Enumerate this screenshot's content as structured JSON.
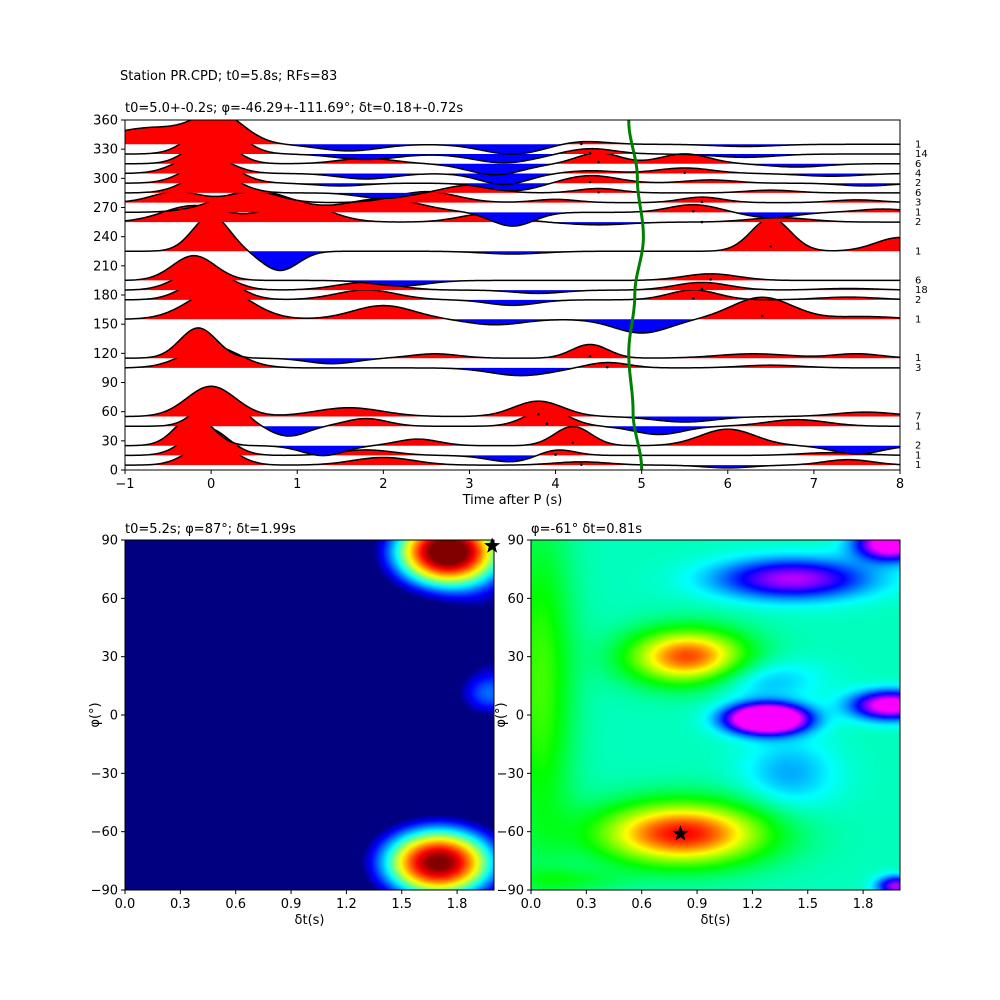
{
  "suptitle": "Station PR.CPD; t0=5.8s; RFs=83",
  "chart_data": [
    {
      "type": "line",
      "panel": "receiver-function-traces",
      "title": "t0=5.0+-0.2s; φ=-46.29+-111.69°; δt=0.18+-0.72s",
      "title_phi": "φ",
      "title_dt": "δ",
      "xlabel": "Time after P (s)",
      "ylabel": "",
      "xlim": [
        -1,
        8
      ],
      "ylim": [
        0,
        360
      ],
      "xticks": [
        -1,
        0,
        1,
        2,
        3,
        4,
        5,
        6,
        7,
        8
      ],
      "yticks": [
        0,
        30,
        60,
        90,
        120,
        150,
        180,
        210,
        240,
        270,
        300,
        330,
        360
      ],
      "fill_positive": "#ff0000",
      "fill_negative": "#0000ff",
      "trace_color": "#000000",
      "curve_color": "#008000",
      "t0_curve": {
        "mean_t": 4.92,
        "amplitude_t": 0.1,
        "points_baz": [
          0,
          60,
          120,
          180,
          240,
          300,
          360
        ],
        "points_t": [
          5.0,
          4.9,
          4.85,
          4.92,
          5.02,
          4.95,
          4.85
        ]
      },
      "traces": [
        {
          "baz": 5,
          "count": "1",
          "peak_t": 4.3,
          "gaussians": [
            [
              0.0,
              0.42,
              0.36
            ],
            [
              2.0,
              0.14,
              0.5
            ],
            [
              4.3,
              0.06,
              0.45
            ],
            [
              6.0,
              -0.05,
              0.4
            ],
            [
              7.4,
              0.1,
              0.4
            ]
          ]
        },
        {
          "baz": 15,
          "count": "1",
          "peak_t": 4.0,
          "gaussians": [
            [
              -0.05,
              0.5,
              0.35
            ],
            [
              1.8,
              0.1,
              0.45
            ],
            [
              3.5,
              -0.12,
              0.4
            ],
            [
              4.0,
              0.12,
              0.3
            ],
            [
              7.2,
              0.05,
              0.5
            ]
          ]
        },
        {
          "baz": 25,
          "count": "2",
          "peak_t": 4.2,
          "gaussians": [
            [
              -0.2,
              0.55,
              0.3
            ],
            [
              1.3,
              -0.18,
              0.35
            ],
            [
              2.4,
              0.12,
              0.35
            ],
            [
              4.2,
              0.35,
              0.3
            ],
            [
              6.0,
              0.3,
              0.45
            ],
            [
              7.5,
              -0.15,
              0.4
            ]
          ]
        },
        {
          "baz": 45,
          "count": "1",
          "peak_t": 3.9,
          "gaussians": [
            [
              0.1,
              0.6,
              0.33
            ],
            [
              0.9,
              -0.18,
              0.3
            ],
            [
              1.8,
              0.14,
              0.35
            ],
            [
              3.9,
              0.3,
              0.35
            ],
            [
              5.2,
              -0.15,
              0.4
            ],
            [
              6.8,
              0.12,
              0.5
            ]
          ]
        },
        {
          "baz": 55,
          "count": "7",
          "peak_t": 3.8,
          "gaussians": [
            [
              0.0,
              0.55,
              0.4
            ],
            [
              1.6,
              0.16,
              0.55
            ],
            [
              3.8,
              0.28,
              0.4
            ],
            [
              5.5,
              -0.1,
              0.5
            ],
            [
              7.6,
              0.08,
              0.5
            ]
          ]
        },
        {
          "baz": 105,
          "count": "3",
          "peak_t": 4.6,
          "gaussians": [
            [
              0.0,
              0.4,
              0.45
            ],
            [
              3.6,
              -0.14,
              0.5
            ],
            [
              4.6,
              0.1,
              0.35
            ],
            [
              6.5,
              0.05,
              0.5
            ]
          ]
        },
        {
          "baz": 115,
          "count": "1",
          "peak_t": 4.4,
          "gaussians": [
            [
              -0.15,
              0.55,
              0.3
            ],
            [
              1.4,
              -0.1,
              0.4
            ],
            [
              2.6,
              0.08,
              0.4
            ],
            [
              4.4,
              0.25,
              0.3
            ],
            [
              6.3,
              0.08,
              0.6
            ],
            [
              7.5,
              0.08,
              0.4
            ]
          ]
        },
        {
          "baz": 155,
          "count": "1",
          "peak_t": 6.4,
          "gaussians": [
            [
              0.1,
              0.55,
              0.5
            ],
            [
              2.0,
              0.25,
              0.5
            ],
            [
              3.3,
              -0.1,
              0.45
            ],
            [
              5.0,
              -0.25,
              0.45
            ],
            [
              6.4,
              0.4,
              0.5
            ],
            [
              7.6,
              0.05,
              0.5
            ]
          ]
        },
        {
          "baz": 175,
          "count": "2",
          "peak_t": 5.6,
          "gaussians": [
            [
              0.0,
              0.45,
              0.4
            ],
            [
              1.8,
              0.18,
              0.5
            ],
            [
              3.5,
              -0.1,
              0.4
            ],
            [
              5.6,
              0.18,
              0.4
            ],
            [
              7.4,
              0.05,
              0.5
            ]
          ]
        },
        {
          "baz": 185,
          "count": "18",
          "peak_t": 5.7,
          "gaussians": [
            [
              -0.1,
              0.4,
              0.4
            ],
            [
              1.8,
              0.14,
              0.5
            ],
            [
              3.8,
              -0.06,
              0.4
            ],
            [
              5.7,
              0.14,
              0.45
            ],
            [
              7.4,
              0.03,
              0.5
            ]
          ]
        },
        {
          "baz": 195,
          "count": "6",
          "peak_t": 5.8,
          "gaussians": [
            [
              -0.2,
              0.45,
              0.35
            ],
            [
              2.2,
              -0.1,
              0.45
            ],
            [
              5.8,
              0.12,
              0.45
            ]
          ]
        },
        {
          "baz": 225,
          "count": "1",
          "peak_t": 6.5,
          "gaussians": [
            [
              0.0,
              0.65,
              0.3
            ],
            [
              0.8,
              -0.35,
              0.3
            ],
            [
              3.5,
              -0.05,
              0.5
            ],
            [
              6.5,
              0.6,
              0.32
            ],
            [
              8.0,
              0.25,
              0.4
            ]
          ]
        },
        {
          "baz": 255,
          "count": "2",
          "peak_t": 5.7,
          "gaussians": [
            [
              -0.2,
              0.3,
              0.5
            ],
            [
              1.0,
              0.35,
              0.5
            ],
            [
              3.2,
              0.15,
              0.45
            ],
            [
              4.5,
              -0.05,
              0.5
            ],
            [
              6.6,
              0.08,
              0.5
            ]
          ]
        },
        {
          "baz": 265,
          "count": "1",
          "peak_t": 5.6,
          "gaussians": [
            [
              0.5,
              0.4,
              0.6
            ],
            [
              2.0,
              0.25,
              0.6
            ],
            [
              3.5,
              -0.25,
              0.35
            ],
            [
              5.6,
              0.14,
              0.4
            ],
            [
              6.5,
              -0.1,
              0.4
            ],
            [
              7.8,
              0.06,
              0.4
            ]
          ]
        },
        {
          "baz": 275,
          "count": "3",
          "peak_t": 5.7,
          "gaussians": [
            [
              -0.4,
              0.2,
              0.4
            ],
            [
              0.5,
              0.2,
              0.4
            ],
            [
              2.5,
              0.2,
              0.5
            ],
            [
              4.0,
              0.06,
              0.35
            ],
            [
              5.7,
              0.1,
              0.35
            ],
            [
              7.5,
              0.05,
              0.4
            ]
          ]
        },
        {
          "baz": 285,
          "count": "6",
          "peak_t": 4.5,
          "gaussians": [
            [
              0.0,
              0.38,
              0.4
            ],
            [
              2.0,
              -0.1,
              0.4
            ],
            [
              3.0,
              0.14,
              0.4
            ],
            [
              4.5,
              0.08,
              0.35
            ],
            [
              6.5,
              0.05,
              0.4
            ]
          ]
        },
        {
          "baz": 295,
          "count": "2",
          "peak_t": 4.4,
          "gaussians": [
            [
              0.0,
              0.42,
              0.4
            ],
            [
              1.5,
              -0.05,
              0.4
            ],
            [
              3.5,
              -0.14,
              0.45
            ],
            [
              4.4,
              0.14,
              0.45
            ],
            [
              5.8,
              0.06,
              0.4
            ],
            [
              7.6,
              -0.05,
              0.4
            ]
          ]
        },
        {
          "baz": 305,
          "count": "4",
          "peak_t": 5.5,
          "gaussians": [
            [
              -0.1,
              0.36,
              0.4
            ],
            [
              1.8,
              -0.1,
              0.45
            ],
            [
              3.4,
              -0.2,
              0.4
            ],
            [
              4.4,
              0.05,
              0.4
            ],
            [
              5.5,
              0.1,
              0.45
            ],
            [
              7.2,
              -0.05,
              0.5
            ]
          ]
        },
        {
          "baz": 315,
          "count": "6",
          "peak_t": 4.5,
          "gaussians": [
            [
              0.0,
              0.48,
              0.35
            ],
            [
              1.8,
              0.1,
              0.45
            ],
            [
              3.3,
              -0.2,
              0.45
            ],
            [
              4.5,
              0.2,
              0.35
            ],
            [
              5.5,
              0.18,
              0.4
            ],
            [
              6.8,
              -0.06,
              0.45
            ]
          ]
        },
        {
          "baz": 325,
          "count": "14",
          "peak_t": 4.4,
          "gaussians": [
            [
              0.05,
              0.6,
              0.38
            ],
            [
              1.8,
              -0.1,
              0.5
            ],
            [
              3.4,
              -0.16,
              0.5
            ],
            [
              4.4,
              0.1,
              0.4
            ],
            [
              6.2,
              -0.06,
              0.5
            ]
          ]
        },
        {
          "baz": 335,
          "count": "1",
          "peak_t": 4.3,
          "gaussians": [
            [
              -0.7,
              0.3,
              0.7
            ],
            [
              0.1,
              0.5,
              0.4
            ],
            [
              1.6,
              -0.12,
              0.5
            ],
            [
              3.5,
              -0.18,
              0.5
            ],
            [
              4.3,
              0.06,
              0.4
            ],
            [
              6.2,
              -0.04,
              0.5
            ]
          ]
        }
      ]
    },
    {
      "type": "heatmap",
      "panel": "left-grid",
      "title": "t0=5.2s; φ=87°; δt=1.99s",
      "xlabel": "δt(s)",
      "ylabel": "φ(°)",
      "xlim": [
        0.0,
        2.0
      ],
      "ylim": [
        -90,
        90
      ],
      "xticks": [
        "0.0",
        "0.3",
        "0.6",
        "0.9",
        "1.2",
        "1.5",
        "1.8"
      ],
      "yticks": [
        "−90",
        "−60",
        "−30",
        "0",
        "30",
        "60",
        "90"
      ],
      "colormap": "jet",
      "best": {
        "dt": 1.99,
        "phi": 87
      },
      "field": {
        "base": -0.28,
        "components": [
          [
            0.42,
            -10,
            0.06,
            90,
            -2.2
          ],
          [
            1.7,
            -76,
            0.34,
            20,
            1.3
          ],
          [
            1.75,
            84,
            0.32,
            20,
            1.4
          ],
          [
            1.98,
            10,
            0.22,
            14,
            0.45
          ],
          [
            0.75,
            45,
            0.45,
            22,
            0.2
          ],
          [
            0.7,
            -45,
            0.5,
            15,
            0.15
          ],
          [
            2.0,
            40,
            0.25,
            25,
            0.25
          ]
        ]
      }
    },
    {
      "type": "heatmap",
      "panel": "right-grid",
      "title": "φ=-61° δt=0.81s",
      "xlabel": "δt(s)",
      "ylabel": "φ(°)",
      "xlim": [
        0.0,
        2.0
      ],
      "ylim": [
        -90,
        90
      ],
      "xticks": [
        "0.0",
        "0.3",
        "0.6",
        "0.9",
        "1.2",
        "1.5",
        "1.8"
      ],
      "yticks": [
        "−90",
        "−60",
        "−30",
        "0",
        "30",
        "60",
        "90"
      ],
      "colormap": "hsv",
      "best": {
        "dt": 0.81,
        "phi": -61
      },
      "field": {
        "base": 0.45,
        "components": [
          [
            0.82,
            -61,
            0.45,
            16,
            0.55
          ],
          [
            0.85,
            30,
            0.32,
            14,
            0.5
          ],
          [
            0.05,
            15,
            0.18,
            85,
            0.2
          ],
          [
            1.28,
            -2,
            0.2,
            7,
            -0.95
          ],
          [
            1.95,
            5,
            0.2,
            7,
            -0.55
          ],
          [
            1.25,
            18,
            0.3,
            11,
            -0.12
          ],
          [
            1.42,
            70,
            0.4,
            10,
            -0.4
          ],
          [
            1.95,
            88,
            0.18,
            8,
            -0.6
          ],
          [
            1.98,
            -88,
            0.1,
            5,
            -0.4
          ],
          [
            1.4,
            -30,
            0.25,
            18,
            -0.12
          ],
          [
            0.2,
            -85,
            0.3,
            6,
            0.1
          ]
        ]
      }
    }
  ]
}
